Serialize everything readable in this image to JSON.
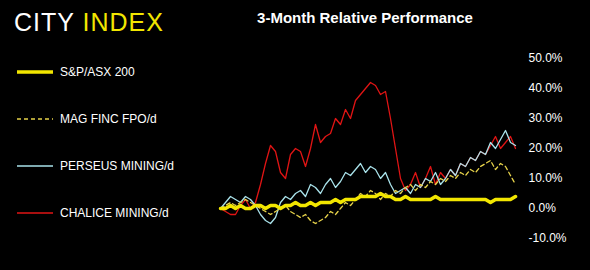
{
  "logo": "CITY INDEX",
  "chart_data": {
    "type": "line",
    "title": "3-Month Relative Performance",
    "categories": [
      null,
      null,
      null,
      null,
      null,
      null,
      null,
      null,
      null,
      null,
      null,
      null,
      null,
      null,
      null,
      null,
      null,
      null,
      null,
      null,
      null,
      null,
      null,
      null,
      null,
      null,
      null,
      null,
      null,
      null,
      null,
      null,
      null,
      null,
      null,
      null,
      null,
      null,
      null,
      null,
      null,
      null,
      null,
      null,
      null,
      null,
      null,
      null,
      null,
      null,
      null,
      null,
      null,
      null,
      null,
      null,
      null,
      null,
      null,
      null
    ],
    "series": [
      {
        "name": "S&P/ASX 200",
        "color": "#f2e600",
        "line_style": "solid",
        "values": [
          0,
          0,
          1,
          0,
          1,
          0,
          0,
          1,
          1,
          0,
          1,
          1,
          0,
          1,
          1,
          2,
          1,
          1,
          2,
          1,
          2,
          2,
          2,
          3,
          2,
          3,
          3,
          3,
          4,
          4,
          4,
          4,
          5,
          4,
          4,
          3,
          3,
          4,
          3,
          3,
          3,
          3,
          3,
          4,
          3,
          3,
          3,
          3,
          3,
          3,
          3,
          3,
          3,
          3,
          2,
          3,
          3,
          3,
          3,
          4
        ]
      },
      {
        "name": "MAG FINC FPO/d",
        "color": "#e6d24a",
        "line_style": "dashed",
        "values": [
          0,
          1,
          2,
          1,
          2,
          3,
          2,
          1,
          0,
          -1,
          -2,
          -1,
          0,
          1,
          -1,
          -2,
          -3,
          -2,
          -4,
          -5,
          -4,
          -3,
          -1,
          -2,
          0,
          2,
          1,
          3,
          5,
          4,
          6,
          5,
          3,
          5,
          4,
          6,
          5,
          7,
          8,
          6,
          8,
          7,
          9,
          8,
          10,
          9,
          11,
          10,
          12,
          11,
          13,
          12,
          14,
          15,
          16,
          13,
          15,
          14,
          11,
          8
        ]
      },
      {
        "name": "PERSEUS MINING/d",
        "color": "#a9e2ea",
        "line_style": "solid",
        "values": [
          0,
          2,
          4,
          3,
          2,
          4,
          3,
          1,
          -2,
          -4,
          -5,
          -3,
          2,
          4,
          3,
          5,
          6,
          4,
          8,
          7,
          5,
          8,
          10,
          7,
          9,
          12,
          11,
          13,
          15,
          12,
          14,
          13,
          10,
          12,
          8,
          5,
          6,
          7,
          5,
          8,
          7,
          10,
          9,
          12,
          8,
          10,
          13,
          11,
          15,
          14,
          17,
          16,
          19,
          18,
          22,
          20,
          23,
          26,
          22,
          21
        ]
      },
      {
        "name": "CHALICE MINING/d",
        "color": "#e01414",
        "line_style": "solid",
        "values": [
          0,
          -1,
          -2,
          -2,
          1,
          3,
          0,
          2,
          8,
          15,
          21,
          19,
          12,
          10,
          18,
          20,
          19,
          14,
          20,
          28,
          22,
          24,
          25,
          30,
          28,
          33,
          30,
          36,
          38,
          40,
          42,
          41,
          38,
          39,
          30,
          20,
          10,
          6,
          8,
          12,
          7,
          10,
          14,
          8,
          12,
          10,
          13,
          11,
          15,
          14,
          17,
          16,
          19,
          18,
          21,
          24,
          20,
          22,
          24,
          20
        ]
      }
    ],
    "ylim": [
      -10,
      50
    ],
    "yticks": [
      {
        "value": 50,
        "label": "50.0%"
      },
      {
        "value": 40,
        "label": "40.0%"
      },
      {
        "value": 30,
        "label": "30.0%"
      },
      {
        "value": 20,
        "label": "20.0%"
      },
      {
        "value": 10,
        "label": "10.0%"
      },
      {
        "value": 0,
        "label": "0.0%"
      },
      {
        "value": -10,
        "label": "-10.0%"
      }
    ],
    "grid": false,
    "legend": "left",
    "tick_labels": "y"
  }
}
